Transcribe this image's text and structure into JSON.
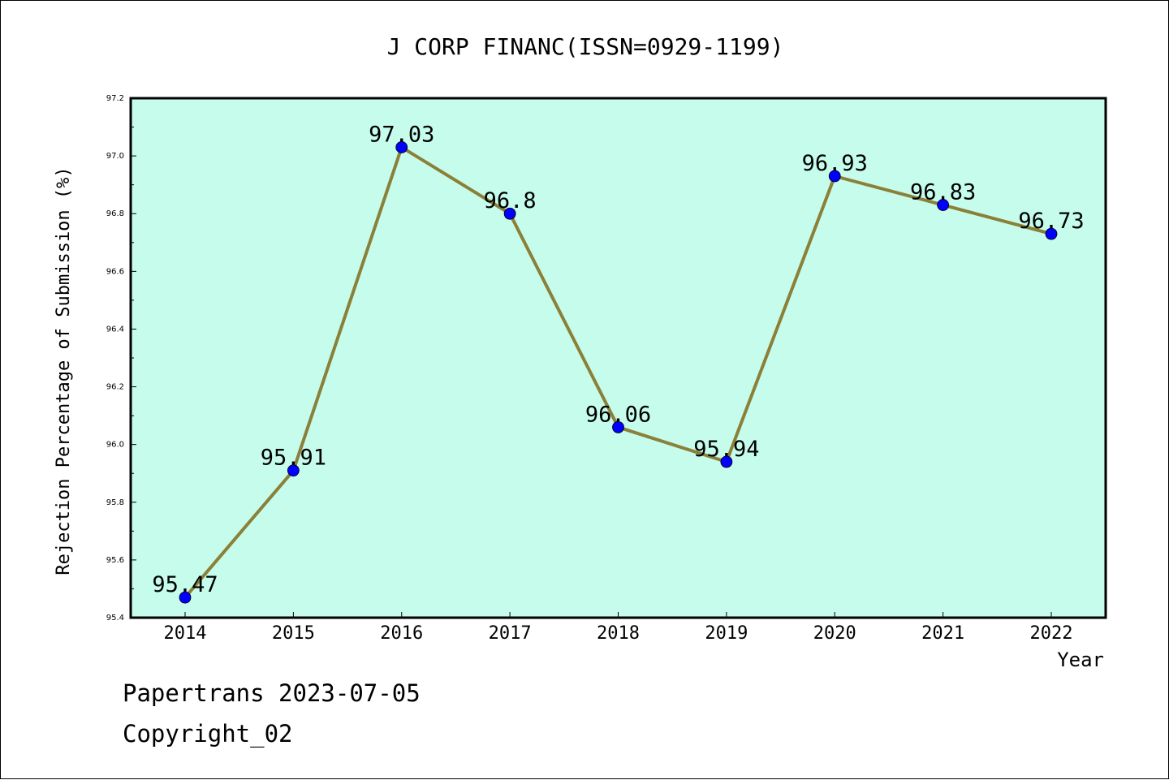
{
  "chart_data": {
    "type": "line",
    "title": "J CORP FINANC(ISSN=0929-1199)",
    "xlabel": "Year",
    "ylabel": "Rejection Percentage of Submission (%)",
    "categories": [
      "2014",
      "2015",
      "2016",
      "2017",
      "2018",
      "2019",
      "2020",
      "2021",
      "2022"
    ],
    "series": [
      {
        "values": [
          95.47,
          95.91,
          97.03,
          96.8,
          96.06,
          95.94,
          96.93,
          96.83,
          96.73
        ]
      }
    ],
    "data_labels": [
      "95.47",
      "95.91",
      "97.03",
      "96.8",
      "96.06",
      "95.94",
      "96.93",
      "96.83",
      "96.73"
    ],
    "y_ticks": [
      "95.4",
      "95.6",
      "95.8",
      "96.0",
      "96.2",
      "96.4",
      "96.6",
      "96.8",
      "97.0",
      "97.2"
    ],
    "ylim": [
      95.4,
      97.2
    ],
    "grid": false,
    "legend": "none",
    "colors": {
      "plot_background": "#c6fcec",
      "line": "#8b8038",
      "marker": "#0000ff"
    }
  },
  "footer": {
    "line1": "Papertrans 2023-07-05",
    "line2": "Copyright_02"
  }
}
